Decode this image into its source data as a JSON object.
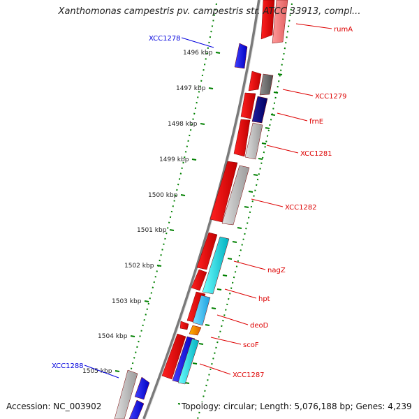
{
  "title": "Xanthomonas campestris pv. campestris str. ATCC 33913, compl...",
  "footer": {
    "accession": "Accession: NC_003902",
    "topology": "Topology: circular; Length: 5,076,188 bp; Genes: 4,239"
  },
  "colors": {
    "backbone": "#7a7a7a",
    "tick_line": "#008000",
    "forward_label": "#dd0000",
    "reverse_label": "#0000dd"
  },
  "ticks": [
    {
      "label": "1496 kbp"
    },
    {
      "label": "1497 kbp"
    },
    {
      "label": "1498 kbp"
    },
    {
      "label": "1499 kbp"
    },
    {
      "label": "1500 kbp"
    },
    {
      "label": "1501 kbp"
    },
    {
      "label": "1502 kbp"
    },
    {
      "label": "1503 kbp"
    },
    {
      "label": "1504 kbp"
    },
    {
      "label": "1505 kbp"
    }
  ],
  "gene_labels": [
    {
      "text": "rumA",
      "strand": "forward"
    },
    {
      "text": "XCC1278",
      "strand": "reverse"
    },
    {
      "text": "XCC1279",
      "strand": "forward"
    },
    {
      "text": "frnE",
      "strand": "forward"
    },
    {
      "text": "XCC1281",
      "strand": "forward"
    },
    {
      "text": "XCC1282",
      "strand": "forward"
    },
    {
      "text": "nagZ",
      "strand": "forward"
    },
    {
      "text": "hpt",
      "strand": "forward"
    },
    {
      "text": "deoD",
      "strand": "forward"
    },
    {
      "text": "scoF",
      "strand": "forward"
    },
    {
      "text": "XCC1287",
      "strand": "forward"
    },
    {
      "text": "XCC1288",
      "strand": "reverse"
    }
  ]
}
